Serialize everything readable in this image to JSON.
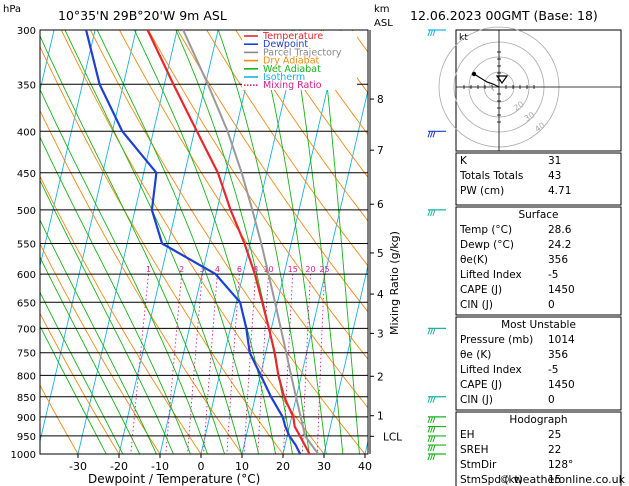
{
  "header": {
    "location": "10°35'N  29B°20'W  9m  ASL",
    "datetime": "12.06.2023  00GMT  (Base: 18)",
    "pressure_unit": "hPa",
    "km_unit": "km",
    "asl_label": "ASL",
    "credit": "© weatheronline.co.uk"
  },
  "legend": {
    "items": [
      {
        "label": "Temperature",
        "color": "#e8262d",
        "dash": "solid"
      },
      {
        "label": "Dewpoint",
        "color": "#1c3fd4",
        "dash": "solid"
      },
      {
        "label": "Parcel Trajectory",
        "color": "#888888",
        "dash": "solid"
      },
      {
        "label": "Dry Adiabat",
        "color": "#f08a18",
        "dash": "solid"
      },
      {
        "label": "Wet Adiabat",
        "color": "#19b319",
        "dash": "solid"
      },
      {
        "label": "Isotherm",
        "color": "#19b2e6",
        "dash": "solid"
      },
      {
        "label": "Mixing Ratio",
        "color": "#d4208f",
        "dash": "dotted"
      }
    ]
  },
  "chart_data": {
    "type": "line",
    "subtype": "skew-T log-P diagram",
    "xlabel": "Dewpoint / Temperature (°C)",
    "ylabel": "hPa",
    "right_axis_label": "Mixing Ratio (g/kg)",
    "x_ticks": [
      -30,
      -20,
      -10,
      0,
      10,
      20,
      30,
      40
    ],
    "pressure_levels": [
      300,
      350,
      400,
      450,
      500,
      550,
      600,
      650,
      700,
      750,
      800,
      850,
      900,
      950,
      1000
    ],
    "xlim": [
      -40,
      40
    ],
    "plim": [
      300,
      1000
    ],
    "km_ticks": [
      {
        "label": "8",
        "p": 365
      },
      {
        "label": "7",
        "p": 422
      },
      {
        "label": "6",
        "p": 492
      },
      {
        "label": "5",
        "p": 565
      },
      {
        "label": "4",
        "p": 635
      },
      {
        "label": "3",
        "p": 710
      },
      {
        "label": "2",
        "p": 802
      },
      {
        "label": "1",
        "p": 897
      },
      {
        "label": "LCL",
        "p": 951
      }
    ],
    "mixing_ratio_labels": [
      "1",
      "2",
      "3",
      "4",
      "6",
      "8",
      "10",
      "15",
      "20",
      "25"
    ],
    "mixing_ratio_values": [
      1,
      2,
      3,
      4,
      6,
      8,
      10,
      15,
      20,
      25
    ],
    "series": [
      {
        "name": "Temperature",
        "color": "#e8262d",
        "p": [
          1000,
          975,
          950,
          925,
          900,
          850,
          800,
          750,
          700,
          650,
          600,
          550,
          500,
          450,
          400,
          350,
          300
        ],
        "t": [
          26.5,
          24.8,
          23.1,
          21.3,
          20.4,
          17.0,
          14.4,
          12.2,
          9.4,
          6.3,
          2.9,
          -1.4,
          -6.7,
          -11.9,
          -19.4,
          -27.8,
          -37.2
        ]
      },
      {
        "name": "Dewpoint",
        "color": "#1c3fd4",
        "p": [
          1000,
          975,
          950,
          925,
          900,
          850,
          800,
          750,
          700,
          650,
          600,
          550,
          500,
          450,
          400,
          350,
          300
        ],
        "t": [
          24.2,
          22.6,
          20.5,
          19.0,
          17.8,
          13.8,
          10.1,
          6.1,
          3.9,
          0.9,
          -6.7,
          -21.5,
          -25.9,
          -26.9,
          -37.6,
          -45.8,
          -52.2
        ]
      },
      {
        "name": "Parcel Trajectory",
        "color": "#999999",
        "p": [
          1000,
          951,
          900,
          850,
          800,
          750,
          700,
          650,
          600,
          550,
          500,
          450,
          400,
          350,
          300
        ],
        "t": [
          28.6,
          24.4,
          22.2,
          19.9,
          17.5,
          15.0,
          12.3,
          9.4,
          6.2,
          2.7,
          -1.4,
          -6.1,
          -11.9,
          -19.4,
          -28.5
        ]
      }
    ],
    "wind_barbs": [
      {
        "p": 300,
        "color": "#19b2e6"
      },
      {
        "p": 400,
        "color": "#1c3fd4"
      },
      {
        "p": 500,
        "color": "#19b3a0"
      },
      {
        "p": 700,
        "color": "#19b3a0"
      },
      {
        "p": 850,
        "color": "#19b3a0"
      },
      {
        "p": 900,
        "color": "#19b319"
      },
      {
        "p": 925,
        "color": "#19b319"
      },
      {
        "p": 950,
        "color": "#19b319"
      },
      {
        "p": 975,
        "color": "#19b319"
      },
      {
        "p": 1000,
        "color": "#19b319"
      }
    ]
  },
  "hodograph": {
    "label": "kt",
    "ring_labels": [
      "20",
      "30",
      "40"
    ]
  },
  "indices": {
    "top": [
      {
        "label": "K",
        "value": "31"
      },
      {
        "label": "Totals Totals",
        "value": "43"
      },
      {
        "label": "PW (cm)",
        "value": "4.71"
      }
    ],
    "surface_title": "Surface",
    "surface": [
      {
        "label": "Temp (°C)",
        "value": "28.6"
      },
      {
        "label": "Dewp (°C)",
        "value": "24.2"
      },
      {
        "label": "θe(K)",
        "value": "356"
      },
      {
        "label": "Lifted Index",
        "value": "-5"
      },
      {
        "label": "CAPE (J)",
        "value": "1450"
      },
      {
        "label": "CIN (J)",
        "value": "0"
      }
    ],
    "unstable_title": "Most Unstable",
    "unstable": [
      {
        "label": "Pressure (mb)",
        "value": "1014"
      },
      {
        "label": "θe (K)",
        "value": "356"
      },
      {
        "label": "Lifted Index",
        "value": "-5"
      },
      {
        "label": "CAPE (J)",
        "value": "1450"
      },
      {
        "label": "CIN (J)",
        "value": "0"
      }
    ],
    "hodo_title": "Hodograph",
    "hodo": [
      {
        "label": "EH",
        "value": "25"
      },
      {
        "label": "SREH",
        "value": "22"
      },
      {
        "label": "StmDir",
        "value": "128°"
      },
      {
        "label": "StmSpd (kt)",
        "value": "15"
      }
    ]
  }
}
